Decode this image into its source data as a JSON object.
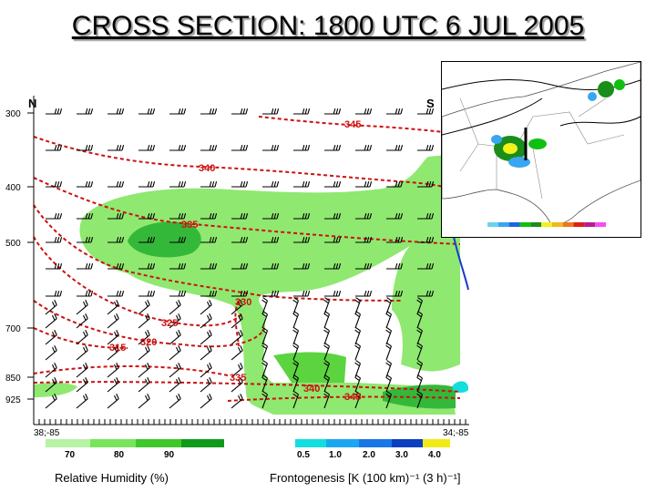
{
  "title": "CROSS SECTION:  1800 UTC 6 JUL 2005",
  "endpoints": {
    "north": "N",
    "south": "S",
    "left_coord": "38;-85",
    "right_coord": "34;-85"
  },
  "pressure_levels": [
    "300",
    "400",
    "500",
    "700",
    "850",
    "925"
  ],
  "theta_labels": [
    "345",
    "340",
    "335",
    "330",
    "325",
    "320",
    "315",
    "335",
    "340",
    "345"
  ],
  "rh_legend": {
    "label": "Relative Humidity (%)",
    "ticks": [
      "70",
      "80",
      "90"
    ],
    "colors": [
      "#b6f3a4",
      "#77e45c",
      "#3fc82a",
      "#0f9a1a"
    ]
  },
  "fg_legend": {
    "label": "Frontogenesis [K (100 km)⁻¹ (3 h)⁻¹]",
    "ticks": [
      "0.5",
      "1.0",
      "2.0",
      "3.0",
      "4.0"
    ],
    "colors": [
      "#13dede",
      "#1ba6f2",
      "#1a76e6",
      "#0a3fc0",
      "#f2ea16"
    ]
  },
  "inset_colorbar": [
    "#6ad2f2",
    "#38a6f0",
    "#1e64e0",
    "#0fc010",
    "#1a8e1a",
    "#f2f21c",
    "#f2b81c",
    "#ec781c",
    "#e21c1c",
    "#b81c8e",
    "#f24ef2"
  ],
  "colors": {
    "theta_line": "#cc1111",
    "fg_line": "#1a3ad0",
    "wind_barb": "#000000"
  }
}
